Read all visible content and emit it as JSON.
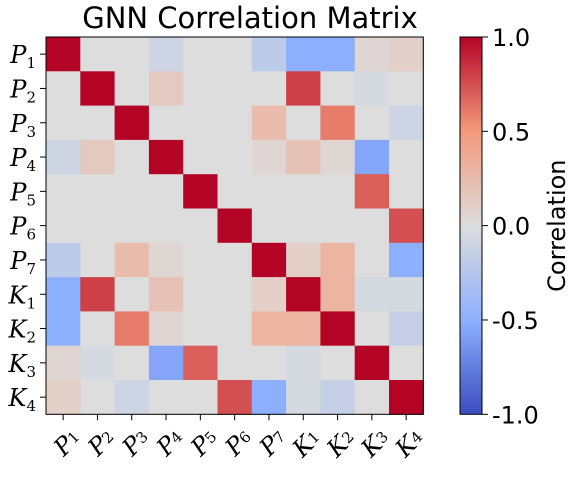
{
  "chart_data": {
    "type": "heatmap",
    "title": "GNN Correlation Matrix",
    "labels": [
      {
        "base": "P",
        "sub": "1"
      },
      {
        "base": "P",
        "sub": "2"
      },
      {
        "base": "P",
        "sub": "3"
      },
      {
        "base": "P",
        "sub": "4"
      },
      {
        "base": "P",
        "sub": "5"
      },
      {
        "base": "P",
        "sub": "6"
      },
      {
        "base": "P",
        "sub": "7"
      },
      {
        "base": "K",
        "sub": "1"
      },
      {
        "base": "K",
        "sub": "2"
      },
      {
        "base": "K",
        "sub": "3"
      },
      {
        "base": "K",
        "sub": "4"
      }
    ],
    "matrix": [
      [
        1.0,
        0.0,
        0.0,
        -0.1,
        0.0,
        0.0,
        -0.2,
        -0.5,
        -0.5,
        0.05,
        0.1
      ],
      [
        0.0,
        1.0,
        0.0,
        0.15,
        0.0,
        0.0,
        0.0,
        0.8,
        0.0,
        -0.05,
        0.0
      ],
      [
        0.0,
        0.0,
        1.0,
        0.0,
        0.0,
        0.0,
        0.25,
        0.0,
        0.6,
        0.0,
        -0.1
      ],
      [
        -0.1,
        0.15,
        0.0,
        1.0,
        0.0,
        0.0,
        0.05,
        0.2,
        0.05,
        -0.55,
        0.0
      ],
      [
        0.0,
        0.0,
        0.0,
        0.0,
        1.0,
        0.0,
        0.0,
        0.0,
        0.0,
        0.7,
        0.0
      ],
      [
        0.0,
        0.0,
        0.0,
        0.0,
        0.0,
        1.0,
        0.0,
        0.0,
        0.0,
        0.0,
        0.75
      ],
      [
        -0.2,
        0.0,
        0.25,
        0.05,
        0.0,
        0.0,
        1.0,
        0.1,
        0.3,
        0.0,
        -0.5
      ],
      [
        -0.5,
        0.8,
        0.0,
        0.2,
        0.0,
        0.0,
        0.1,
        1.0,
        0.3,
        -0.05,
        -0.05
      ],
      [
        -0.5,
        0.0,
        0.6,
        0.05,
        0.0,
        0.0,
        0.3,
        0.3,
        1.0,
        0.0,
        -0.15
      ],
      [
        0.05,
        -0.05,
        0.0,
        -0.55,
        0.7,
        0.0,
        0.0,
        -0.05,
        0.0,
        1.0,
        0.0
      ],
      [
        0.1,
        0.0,
        -0.1,
        0.0,
        0.0,
        0.75,
        -0.5,
        -0.05,
        -0.15,
        0.0,
        1.0
      ]
    ],
    "vmin": -1.0,
    "vmax": 1.0,
    "colormap": "coolwarm",
    "colorbar": {
      "label": "Correlation",
      "ticks": [
        1.0,
        0.5,
        0.0,
        -0.5,
        -1.0
      ],
      "tick_labels": [
        "1.0",
        "0.5",
        "0.0",
        "-0.5",
        "-1.0"
      ]
    },
    "grid": false
  }
}
